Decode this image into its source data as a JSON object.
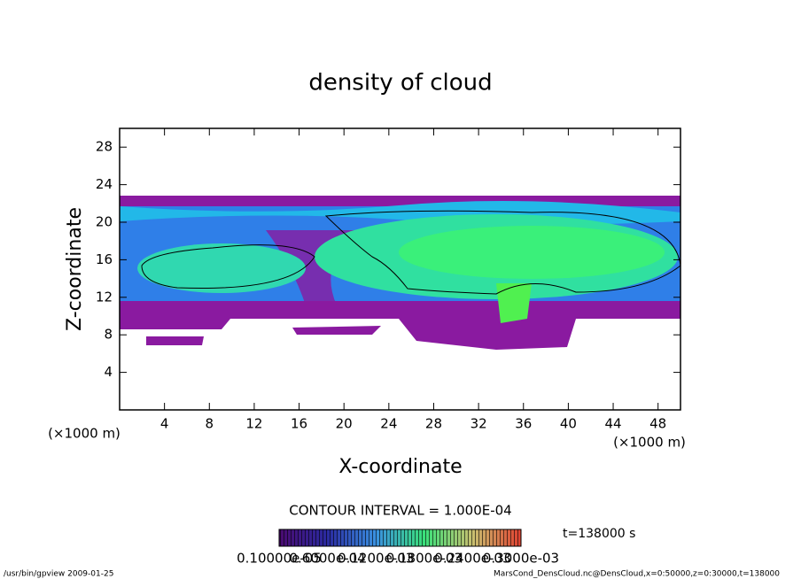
{
  "chart_data": {
    "type": "contour",
    "title": "density of cloud",
    "xlabel": "X-coordinate",
    "ylabel": "Z-coordinate",
    "xunit": "(×1000 m)",
    "yunit": "(×1000 m)",
    "xlim": [
      0,
      50
    ],
    "ylim": [
      0,
      30
    ],
    "xticks": [
      4,
      8,
      12,
      16,
      20,
      24,
      28,
      32,
      36,
      40,
      44,
      48
    ],
    "yticks": [
      4,
      8,
      12,
      16,
      20,
      24,
      28
    ],
    "contour_interval": "CONTOUR INTERVAL = 1.000E-04",
    "time_label": "t=138000 s",
    "colorbar_labels": [
      "0.10000e-05",
      "0.6000e-04",
      "0.1200e-03",
      "0.1800e-03",
      "0.2400e-03",
      "0.3000e-03"
    ],
    "footer_left": "/usr/bin/gpview  2009-01-25",
    "footer_right": "MarsCond_DensCloud.nc@DensCloud,x=0:50000,z=0:30000,t=138000"
  }
}
